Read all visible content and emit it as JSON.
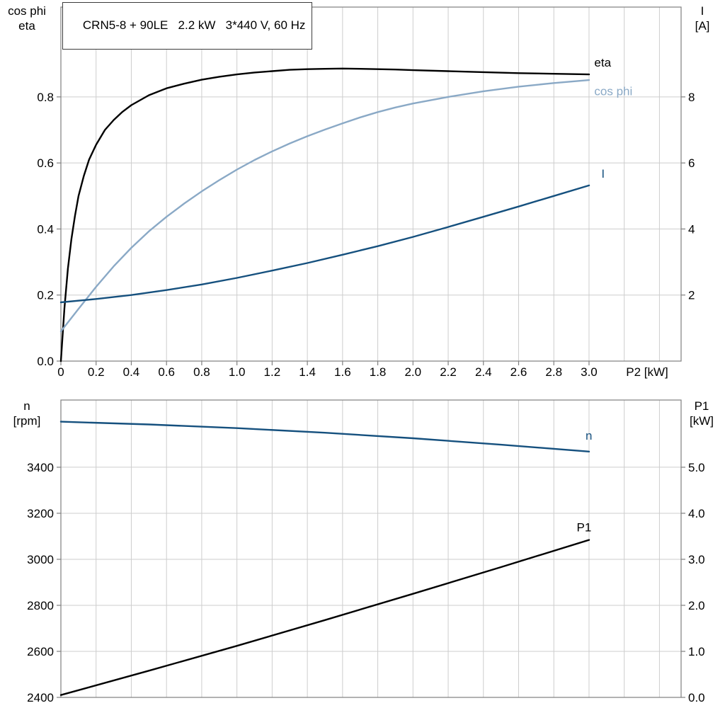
{
  "title_box": {
    "text": "CRN5-8 + 90LE   2.2 kW   3*440 V, 60 Hz"
  },
  "axis_corner_labels": {
    "top_left": [
      "cos phi",
      "eta"
    ],
    "top_right": [
      "I",
      "[A]"
    ],
    "bottom_left": [
      "n",
      "[rpm]"
    ],
    "bottom_right": [
      "P1",
      "[kW]"
    ]
  },
  "colors": {
    "eta": "#000000",
    "cos_phi": "#8aa9c6",
    "current": "#15507e",
    "speed": "#15507e",
    "p1": "#000000",
    "grid": "#cdcdcd",
    "frame": "#7f7f7f",
    "text": "#000000"
  },
  "chart_data": [
    {
      "type": "line",
      "x": {
        "min": 0,
        "max": 3.523,
        "grid_step": 0.2,
        "tick_labels": [
          "0",
          "0.2",
          "0.4",
          "0.6",
          "0.8",
          "1.0",
          "1.2",
          "1.4",
          "1.6",
          "1.8",
          "2.0",
          "2.2",
          "2.4",
          "2.6",
          "2.8",
          "3.0"
        ],
        "axis_label": "P2 [kW]"
      },
      "left_axis": {
        "min": 0,
        "max": 1.072,
        "ticks": [
          0,
          0.2,
          0.4,
          0.6,
          0.8
        ],
        "tick_labels": [
          "0.0",
          "0.2",
          "0.4",
          "0.6",
          "0.8"
        ]
      },
      "right_axis": {
        "min": 0,
        "max": 10.72,
        "ticks": [
          2,
          4,
          6,
          8
        ],
        "tick_labels": [
          "2",
          "4",
          "6",
          "8"
        ]
      },
      "series": [
        {
          "name": "eta",
          "label": "eta",
          "color_key": "eta",
          "axis": "left",
          "label_pos": [
            3.03,
            0.905
          ],
          "points": [
            [
              0,
              0
            ],
            [
              0.02,
              0.16
            ],
            [
              0.04,
              0.28
            ],
            [
              0.06,
              0.37
            ],
            [
              0.08,
              0.44
            ],
            [
              0.1,
              0.5
            ],
            [
              0.13,
              0.56
            ],
            [
              0.16,
              0.61
            ],
            [
              0.2,
              0.655
            ],
            [
              0.25,
              0.7
            ],
            [
              0.3,
              0.73
            ],
            [
              0.35,
              0.755
            ],
            [
              0.4,
              0.775
            ],
            [
              0.5,
              0.805
            ],
            [
              0.6,
              0.826
            ],
            [
              0.7,
              0.84
            ],
            [
              0.8,
              0.852
            ],
            [
              0.9,
              0.861
            ],
            [
              1.0,
              0.868
            ],
            [
              1.1,
              0.874
            ],
            [
              1.2,
              0.878
            ],
            [
              1.3,
              0.882
            ],
            [
              1.4,
              0.884
            ],
            [
              1.5,
              0.885
            ],
            [
              1.6,
              0.886
            ],
            [
              1.7,
              0.885
            ],
            [
              1.8,
              0.884
            ],
            [
              1.9,
              0.883
            ],
            [
              2.0,
              0.881
            ],
            [
              2.2,
              0.878
            ],
            [
              2.4,
              0.875
            ],
            [
              2.6,
              0.872
            ],
            [
              2.8,
              0.87
            ],
            [
              3.0,
              0.868
            ]
          ]
        },
        {
          "name": "cos phi",
          "label": "cos phi",
          "color_key": "cos_phi",
          "axis": "left",
          "label_pos": [
            3.03,
            0.818
          ],
          "points": [
            [
              0,
              0.09
            ],
            [
              0.1,
              0.158
            ],
            [
              0.2,
              0.225
            ],
            [
              0.3,
              0.287
            ],
            [
              0.4,
              0.343
            ],
            [
              0.5,
              0.393
            ],
            [
              0.6,
              0.437
            ],
            [
              0.7,
              0.477
            ],
            [
              0.8,
              0.514
            ],
            [
              0.9,
              0.548
            ],
            [
              1.0,
              0.58
            ],
            [
              1.1,
              0.609
            ],
            [
              1.2,
              0.635
            ],
            [
              1.3,
              0.659
            ],
            [
              1.4,
              0.681
            ],
            [
              1.5,
              0.701
            ],
            [
              1.6,
              0.72
            ],
            [
              1.7,
              0.738
            ],
            [
              1.8,
              0.754
            ],
            [
              1.9,
              0.768
            ],
            [
              2.0,
              0.78
            ],
            [
              2.2,
              0.8
            ],
            [
              2.4,
              0.817
            ],
            [
              2.6,
              0.831
            ],
            [
              2.8,
              0.842
            ],
            [
              3.0,
              0.851
            ]
          ]
        },
        {
          "name": "I",
          "label": "I",
          "color_key": "current",
          "axis": "right",
          "label_pos": [
            3.07,
            5.68
          ],
          "points": [
            [
              0,
              1.78
            ],
            [
              0.2,
              1.88
            ],
            [
              0.4,
              2.0
            ],
            [
              0.6,
              2.15
            ],
            [
              0.8,
              2.32
            ],
            [
              1.0,
              2.52
            ],
            [
              1.2,
              2.74
            ],
            [
              1.4,
              2.97
            ],
            [
              1.6,
              3.22
            ],
            [
              1.8,
              3.48
            ],
            [
              2.0,
              3.76
            ],
            [
              2.2,
              4.06
            ],
            [
              2.4,
              4.37
            ],
            [
              2.6,
              4.68
            ],
            [
              2.8,
              5.0
            ],
            [
              3.0,
              5.32
            ]
          ]
        }
      ]
    },
    {
      "type": "line",
      "x": {
        "min": 0,
        "max": 3.523,
        "grid_step": 0.2,
        "tick_labels": [],
        "axis_label": ""
      },
      "left_axis": {
        "min": 2400,
        "max": 3692,
        "ticks": [
          2400,
          2600,
          2800,
          3000,
          3200,
          3400
        ],
        "tick_labels": [
          "2400",
          "2600",
          "2800",
          "3000",
          "3200",
          "3400"
        ]
      },
      "right_axis": {
        "min": 0,
        "max": 6.46,
        "ticks": [
          0,
          1,
          2,
          3,
          4,
          5
        ],
        "tick_labels": [
          "0.0",
          "1.0",
          "2.0",
          "3.0",
          "4.0",
          "5.0"
        ]
      },
      "series": [
        {
          "name": "n",
          "label": "n",
          "color_key": "speed",
          "axis": "left",
          "label_pos": [
            2.98,
            3538
          ],
          "points": [
            [
              0,
              3598
            ],
            [
              0.5,
              3586
            ],
            [
              1.0,
              3570
            ],
            [
              1.5,
              3550
            ],
            [
              2.0,
              3526
            ],
            [
              2.5,
              3498
            ],
            [
              3.0,
              3468
            ]
          ]
        },
        {
          "name": "P1",
          "label": "P1",
          "color_key": "p1",
          "axis": "right",
          "label_pos": [
            2.93,
            3.7
          ],
          "points": [
            [
              0,
              0.05
            ],
            [
              0.5,
              0.58
            ],
            [
              1.0,
              1.12
            ],
            [
              1.5,
              1.68
            ],
            [
              2.0,
              2.25
            ],
            [
              2.5,
              2.83
            ],
            [
              3.0,
              3.42
            ]
          ]
        }
      ]
    }
  ]
}
